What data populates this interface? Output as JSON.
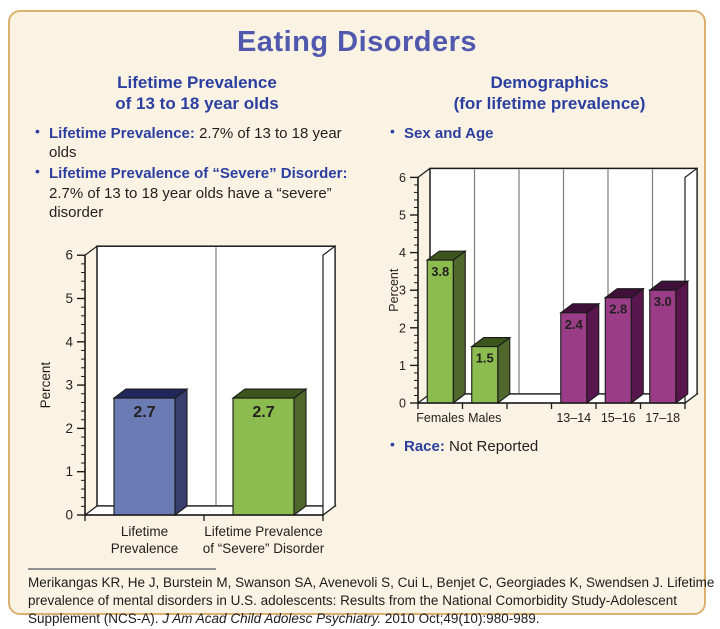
{
  "page": {
    "title": "Eating Disorders"
  },
  "left_section": {
    "heading": {
      "line1": "Lifetime Prevalence",
      "line2": "of 13 to 18 year olds"
    },
    "bullets": [
      {
        "label": "Lifetime Prevalence:",
        "text": "2.7% of 13 to 18 year olds"
      },
      {
        "label": "Lifetime Prevalence of “Severe” Disorder:",
        "text": "2.7% of 13 to 18 year olds have a “severe” disorder"
      }
    ]
  },
  "right_section": {
    "heading": {
      "line1": "Demographics",
      "line2": "(for lifetime prevalence)"
    },
    "bullets_top": [
      {
        "label": "Sex and Age",
        "text": ""
      }
    ],
    "bullets_bottom": [
      {
        "label": "Race:",
        "text": "Not Reported"
      }
    ]
  },
  "citation": {
    "text": "Merikangas KR, He J, Burstein M, Swanson SA, Avenevoli S, Cui L, Benjet C, Georgiades K, Swendsen J. Lifetime prevalence of mental disorders in U.S. adolescents: Results from the National Comorbidity Study-Adolescent Supplement (NCS-A). ",
    "journal_italic": "J Am Acad Child Adolesc Psychiatry.",
    "tail": " 2010 Oct;49(10):980-989."
  },
  "palette": {
    "blue": {
      "face": "#6b7cb4",
      "top": "#20275a",
      "side": "#383e6e"
    },
    "green": {
      "face": "#8cbc4f",
      "top": "#3c551d",
      "side": "#50682c"
    },
    "purple": {
      "face": "#9a3c86",
      "top": "#3f1039",
      "side": "#58154e"
    }
  },
  "chart_data": [
    {
      "type": "bar",
      "title": "Lifetime prevalence of eating disorders, 13 to 18 year olds",
      "xlabel": "",
      "ylabel": "Percent",
      "ylim": [
        0,
        6
      ],
      "grid": "column-dividers",
      "legend": "none",
      "categories": [
        "Lifetime\nPrevalence",
        "Lifetime Prevalence\nof “Severe” Disorder"
      ],
      "values": [
        2.7,
        2.7
      ],
      "value_labels": [
        "2.7",
        "2.7"
      ],
      "colors": [
        "blue",
        "green"
      ]
    },
    {
      "type": "bar",
      "title": "Demographics (for lifetime prevalence) — Sex and Age",
      "xlabel": "",
      "ylabel": "Percent",
      "ylim": [
        0,
        6
      ],
      "grid": "column-dividers",
      "legend": "none",
      "categories": [
        "Females",
        "Males",
        "",
        "13–14",
        "15–16",
        "17–18"
      ],
      "values": [
        3.8,
        1.5,
        null,
        2.4,
        2.8,
        3.0
      ],
      "value_labels": [
        "3.8",
        "1.5",
        "",
        "2.4",
        "2.8",
        "3.0"
      ],
      "colors": [
        "green",
        "green",
        null,
        "purple",
        "purple",
        "purple"
      ]
    }
  ]
}
